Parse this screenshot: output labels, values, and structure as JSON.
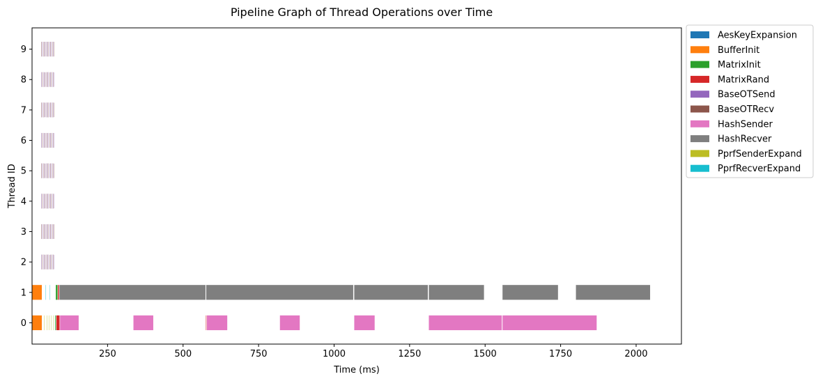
{
  "chart_data": {
    "type": "gantt",
    "title": "Pipeline Graph of Thread Operations over Time",
    "xlabel": "Time (ms)",
    "ylabel": "Thread ID",
    "xlim": [
      0,
      2150
    ],
    "ylim": [
      -0.7,
      9.7
    ],
    "xticks": [
      250,
      500,
      750,
      1000,
      1250,
      1500,
      1750,
      2000
    ],
    "yticks": [
      0,
      1,
      2,
      3,
      4,
      5,
      6,
      7,
      8,
      9
    ],
    "legend_position": "outside-top-right",
    "bar_height": 0.5,
    "colors": {
      "AesKeyExpansion": "#1f77b4",
      "BufferInit": "#ff7f0e",
      "MatrixInit": "#2ca02c",
      "MatrixRand": "#d62728",
      "BaseOTSend": "#9467bd",
      "BaseOTRecv": "#8c564b",
      "HashSender": "#e377c2",
      "HashRecver": "#7f7f7f",
      "PprfSenderExpand": "#bcbd22",
      "PprfRecverExpand": "#17becf"
    },
    "legend": [
      "AesKeyExpansion",
      "BufferInit",
      "MatrixInit",
      "MatrixRand",
      "BaseOTSend",
      "BaseOTRecv",
      "HashSender",
      "HashRecver",
      "PprfSenderExpand",
      "PprfRecverExpand"
    ],
    "series": [
      {
        "thread": 0,
        "op": "BufferInit",
        "start": 0,
        "end": 33
      },
      {
        "thread": 0,
        "op": "PprfSenderExpand",
        "start": 40,
        "end": 42
      },
      {
        "thread": 0,
        "op": "PprfSenderExpand",
        "start": 48,
        "end": 50
      },
      {
        "thread": 0,
        "op": "PprfSenderExpand",
        "start": 55,
        "end": 57
      },
      {
        "thread": 0,
        "op": "PprfSenderExpand",
        "start": 62,
        "end": 64
      },
      {
        "thread": 0,
        "op": "PprfSenderExpand",
        "start": 70,
        "end": 72
      },
      {
        "thread": 0,
        "op": "MatrixInit",
        "start": 76,
        "end": 80
      },
      {
        "thread": 0,
        "op": "MatrixRand",
        "start": 80,
        "end": 92
      },
      {
        "thread": 0,
        "op": "HashSender",
        "start": 92,
        "end": 155
      },
      {
        "thread": 0,
        "op": "HashSender",
        "start": 335,
        "end": 402
      },
      {
        "thread": 0,
        "op": "MatrixRand",
        "start": 575,
        "end": 578
      },
      {
        "thread": 0,
        "op": "HashSender",
        "start": 578,
        "end": 647
      },
      {
        "thread": 0,
        "op": "HashSender",
        "start": 820,
        "end": 887
      },
      {
        "thread": 0,
        "op": "HashSender",
        "start": 1066,
        "end": 1135
      },
      {
        "thread": 0,
        "op": "HashSender",
        "start": 1313,
        "end": 1556
      },
      {
        "thread": 0,
        "op": "HashSender",
        "start": 1557,
        "end": 1870
      },
      {
        "thread": 1,
        "op": "BufferInit",
        "start": 0,
        "end": 33
      },
      {
        "thread": 1,
        "op": "PprfRecverExpand",
        "start": 44,
        "end": 46
      },
      {
        "thread": 1,
        "op": "PprfRecverExpand",
        "start": 58,
        "end": 60
      },
      {
        "thread": 1,
        "op": "MatrixInit",
        "start": 78,
        "end": 85
      },
      {
        "thread": 1,
        "op": "MatrixRand",
        "start": 85,
        "end": 90
      },
      {
        "thread": 1,
        "op": "HashRecver",
        "start": 90,
        "end": 575
      },
      {
        "thread": 1,
        "op": "HashRecver",
        "start": 576,
        "end": 1064
      },
      {
        "thread": 1,
        "op": "HashRecver",
        "start": 1066,
        "end": 1311
      },
      {
        "thread": 1,
        "op": "HashRecver",
        "start": 1313,
        "end": 1497
      },
      {
        "thread": 1,
        "op": "HashRecver",
        "start": 1557,
        "end": 1742
      },
      {
        "thread": 1,
        "op": "HashRecver",
        "start": 1800,
        "end": 2047
      }
    ],
    "baseot_pattern": {
      "threads": [
        2,
        3,
        4,
        5,
        6,
        7,
        8,
        9
      ],
      "start": 30,
      "end": 75,
      "ops": [
        "BaseOTSend",
        "BaseOTRecv"
      ]
    }
  }
}
